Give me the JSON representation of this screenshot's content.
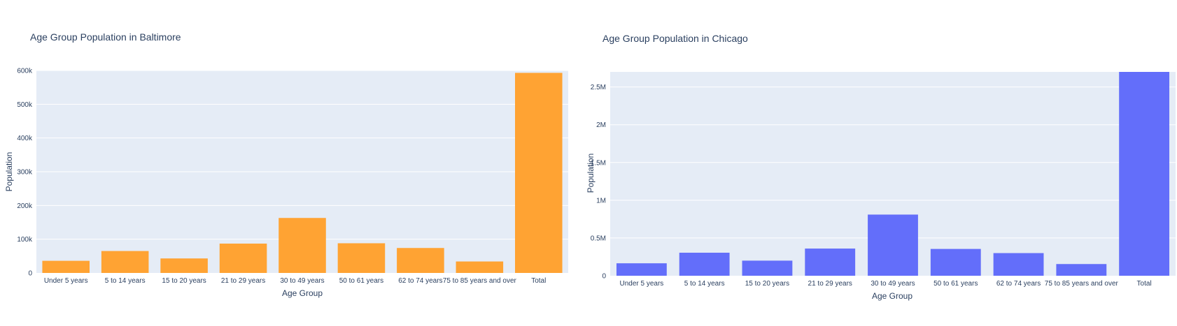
{
  "chart_data": [
    {
      "type": "bar",
      "title": "Age Group Population in Baltimore",
      "xlabel": "Age Group",
      "ylabel": "Population",
      "categories": [
        "Under 5 years",
        "5 to 14 years",
        "15 to 20 years",
        "21 to 29 years",
        "30 to 49 years",
        "50 to 61 years",
        "62 to 74 years",
        "75 to 85  years and over",
        "Total"
      ],
      "values": [
        36000,
        65000,
        43000,
        87000,
        163000,
        88000,
        74000,
        34000,
        593000
      ],
      "ylim": [
        0,
        600000
      ],
      "yticks": [
        0,
        100000,
        200000,
        300000,
        400000,
        500000,
        600000
      ],
      "ytick_labels": [
        "0",
        "100k",
        "200k",
        "300k",
        "400k",
        "500k",
        "600k"
      ],
      "color": "#ffa333",
      "grid": true
    },
    {
      "type": "bar",
      "title": "Age Group Population in Chicago",
      "xlabel": "Age Group",
      "ylabel": "Population",
      "categories": [
        "Under 5 years",
        "5 to 14 years",
        "15 to 20 years",
        "21 to 29 years",
        "30 to 49 years",
        "50 to 61 years",
        "62 to 74  years",
        "75 to 85 years and over",
        "Total"
      ],
      "values": [
        165000,
        305000,
        200000,
        360000,
        810000,
        355000,
        300000,
        155000,
        2700000
      ],
      "ylim": [
        0,
        2700000
      ],
      "yticks": [
        0,
        500000,
        1000000,
        1500000,
        2000000,
        2500000
      ],
      "ytick_labels": [
        "0",
        "0.5M",
        "1M",
        "1.5M",
        "2M",
        "2.5M"
      ],
      "color": "#636efa",
      "grid": true
    }
  ]
}
